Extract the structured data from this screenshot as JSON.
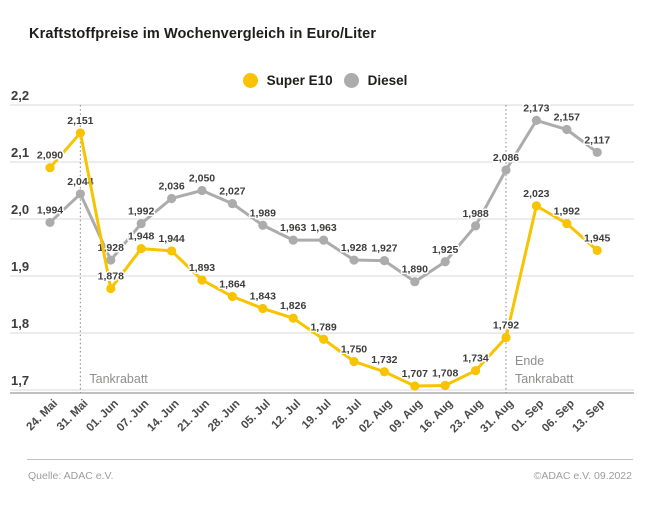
{
  "title": "Kraftstoffpreise im Wochenvergleich in Euro/Liter",
  "legend": [
    {
      "label": "Super E10",
      "color": "#F8C300"
    },
    {
      "label": "Diesel",
      "color": "#ACACAC"
    }
  ],
  "colors": {
    "super_e10": "#F8C300",
    "diesel": "#ACACAC",
    "grid": "#DADADA",
    "axis": "#ABABAB",
    "annotation_line": "#999999",
    "annotation_text": "#8E8E8D",
    "data_label": "#3D3D3C",
    "title_text": "#1D1D1B",
    "footer_text": "#9D9D9C"
  },
  "chart_data": {
    "type": "line",
    "title": "Kraftstoffpreise im Wochenvergleich in Euro/Liter",
    "ylabel": "Euro/Liter",
    "ylim": [
      1.7,
      2.2
    ],
    "grid": true,
    "legend_position": "top",
    "y_ticks": [
      "2,2",
      "2,1",
      "2,0",
      "1,9",
      "1,8",
      "1,7"
    ],
    "categories": [
      "24. Mai",
      "31. Mai",
      "01. Jun",
      "07. Jun",
      "14. Jun",
      "21. Jun",
      "28. Jun",
      "05. Jul",
      "12. Jul",
      "19. Jul",
      "26. Jul",
      "02. Aug",
      "09. Aug",
      "16. Aug",
      "23. Aug",
      "31. Aug",
      "01. Sep",
      "06. Sep",
      "13. Sep"
    ],
    "series": [
      {
        "name": "Super E10",
        "color": "#F8C300",
        "values": [
          2.09,
          2.151,
          1.878,
          1.948,
          1.944,
          1.893,
          1.864,
          1.843,
          1.826,
          1.789,
          1.75,
          1.732,
          1.707,
          1.708,
          1.734,
          1.792,
          2.023,
          1.992,
          1.945
        ]
      },
      {
        "name": "Diesel",
        "color": "#ACACAC",
        "values": [
          1.994,
          2.044,
          1.928,
          1.992,
          2.036,
          2.05,
          2.027,
          1.989,
          1.963,
          1.963,
          1.928,
          1.927,
          1.89,
          1.925,
          1.988,
          2.086,
          2.173,
          2.157,
          2.117
        ]
      }
    ],
    "annotations": [
      {
        "category": "31. Mai",
        "text_lines": [
          "Tankrabatt"
        ]
      },
      {
        "category": "31. Aug",
        "text_lines": [
          "Ende",
          "Tankrabatt"
        ]
      }
    ]
  },
  "footer": {
    "source": "Quelle: ADAC e.V.",
    "copyright": "©ADAC e.V.  09.2022"
  }
}
